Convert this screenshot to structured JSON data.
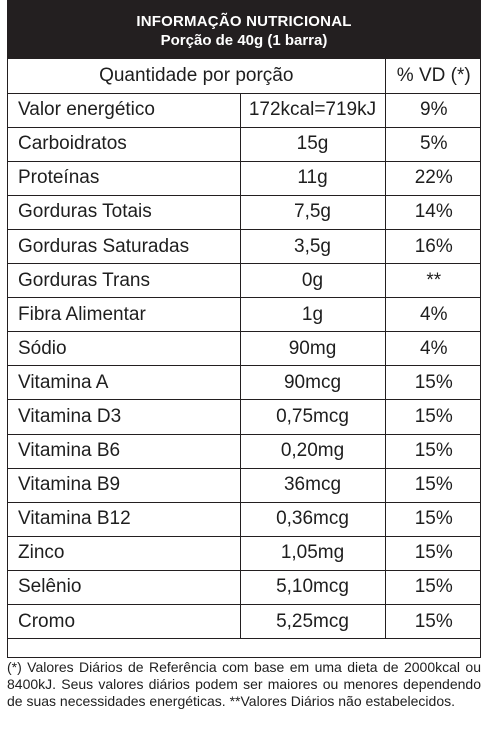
{
  "header": {
    "title": "INFORMAÇÃO NUTRICIONAL",
    "subtitle": "Porção de 40g (1 barra)"
  },
  "columns": {
    "quantity": "Quantidade por porção",
    "vd": "% VD (*)"
  },
  "rows": [
    {
      "name": "Valor energético",
      "amount": "172kcal=719kJ",
      "vd": "9%"
    },
    {
      "name": "Carboidratos",
      "amount": "15g",
      "vd": "5%"
    },
    {
      "name": "Proteínas",
      "amount": "11g",
      "vd": "22%"
    },
    {
      "name": "Gorduras Totais",
      "amount": "7,5g",
      "vd": "14%"
    },
    {
      "name": "Gorduras Saturadas",
      "amount": "3,5g",
      "vd": "16%"
    },
    {
      "name": "Gorduras Trans",
      "amount": "0g",
      "vd": "**"
    },
    {
      "name": "Fibra Alimentar",
      "amount": "1g",
      "vd": "4%"
    },
    {
      "name": "Sódio",
      "amount": "90mg",
      "vd": "4%"
    },
    {
      "name": "Vitamina A",
      "amount": "90mcg",
      "vd": "15%"
    },
    {
      "name": "Vitamina D3",
      "amount": "0,75mcg",
      "vd": "15%"
    },
    {
      "name": "Vitamina B6",
      "amount": "0,20mg",
      "vd": "15%"
    },
    {
      "name": "Vitamina B9",
      "amount": "36mcg",
      "vd": "15%"
    },
    {
      "name": "Vitamina B12",
      "amount": "0,36mcg",
      "vd": "15%"
    },
    {
      "name": "Zinco",
      "amount": "1,05mg",
      "vd": "15%"
    },
    {
      "name": "Selênio",
      "amount": "5,10mcg",
      "vd": "15%"
    },
    {
      "name": "Cromo",
      "amount": "5,25mcg",
      "vd": "15%"
    }
  ],
  "footnote": "(*) Valores Diários de Referência com base em uma dieta de 2000kcal ou 8400kJ. Seus valores diários podem ser maiores ou menores dependendo de suas necessidades energéticas. **Valores Diários não estabelecidos.",
  "colors": {
    "header_bg": "#231f20",
    "header_text": "#ffffff",
    "text": "#1e1e1e"
  }
}
